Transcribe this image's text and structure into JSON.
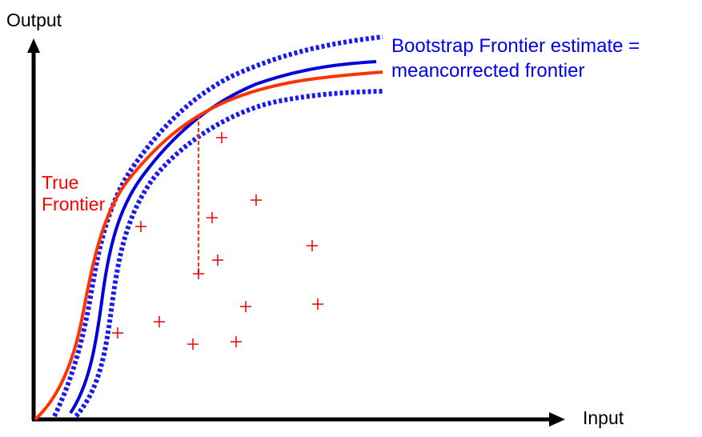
{
  "axes": {
    "y_label": "Output",
    "x_label": "Input"
  },
  "labels": {
    "true_frontier_line1": "True",
    "true_frontier_line2": "Frontier",
    "bootstrap_line1": "Bootstrap Frontier estimate =",
    "bootstrap_line2": "meancorrected frontier"
  },
  "colors": {
    "axis": "#000000",
    "true_frontier": "#ff3300",
    "bootstrap_frontier": "#0000dd",
    "confidence_band": "#1a1aee",
    "data_points": "#ee0000",
    "reference_line": "#ff3300"
  },
  "legend": {
    "true_frontier_name": "True Frontier",
    "bootstrap_name": "Bootstrap Frontier estimate",
    "band_style": "dotted"
  },
  "icons": {
    "x_axis_end": "arrow-right-icon",
    "y_axis_end": "arrow-up-icon",
    "data_marker": "plus-icon"
  }
}
